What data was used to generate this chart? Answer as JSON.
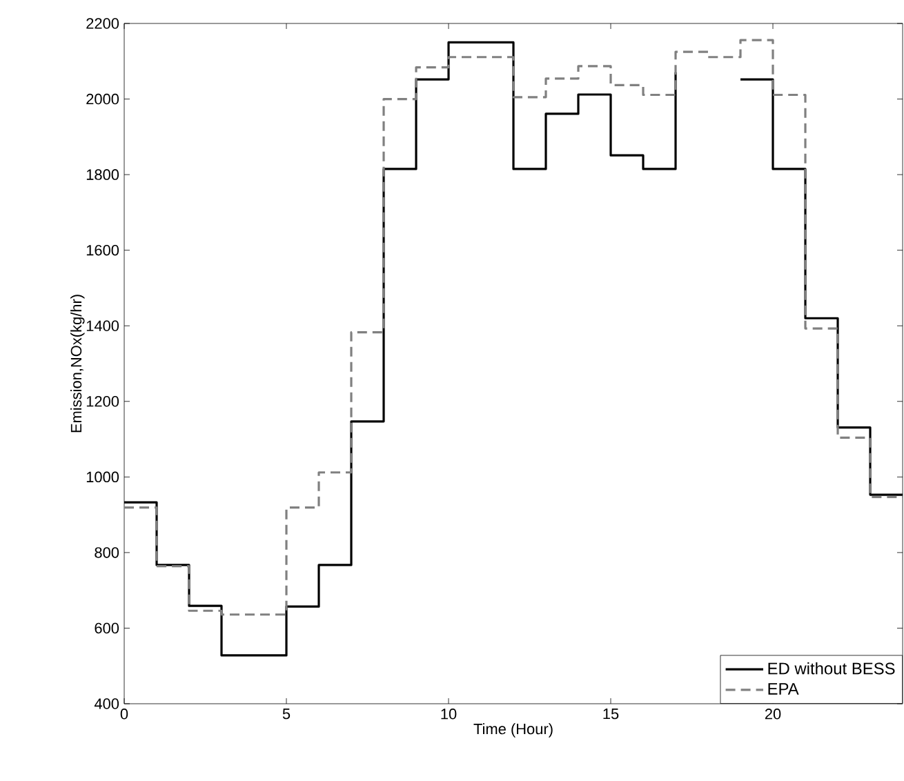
{
  "chart_data": {
    "type": "step",
    "xlabel": "Time (Hour)",
    "ylabel": "Emission,NOx(kg/hr)",
    "x": [
      0,
      1,
      2,
      3,
      4,
      5,
      6,
      7,
      8,
      9,
      10,
      11,
      12,
      13,
      14,
      15,
      16,
      17,
      18,
      19,
      20,
      21,
      22,
      23,
      24
    ],
    "series": [
      {
        "name": "ED without BESS",
        "color": "#000000",
        "line_style": "solid",
        "values": [
          933,
          767,
          659,
          528,
          528,
          657,
          767,
          1147,
          1815,
          2052,
          2150,
          2150,
          1815,
          1961,
          2012,
          1851,
          1815,
          2071,
          null,
          2052,
          1815,
          1420,
          1131,
          953,
          953
        ]
      },
      {
        "name": "EPA",
        "color": "#808080",
        "line_style": "dashed",
        "values": [
          919,
          764,
          646,
          636,
          636,
          919,
          1012,
          1383,
          2000,
          2084,
          2111,
          2111,
          2005,
          2054,
          2087,
          2037,
          2011,
          2125,
          2111,
          2156,
          2011,
          1393,
          1104,
          947,
          947
        ]
      }
    ],
    "xlim": [
      0,
      24
    ],
    "ylim": [
      400,
      2200
    ],
    "xticks": [
      0,
      5,
      10,
      15,
      20
    ],
    "yticks": [
      400,
      600,
      800,
      1000,
      1200,
      1400,
      1600,
      1800,
      2000,
      2200
    ],
    "grid": false,
    "legend": "bottom right",
    "marker": "none"
  }
}
